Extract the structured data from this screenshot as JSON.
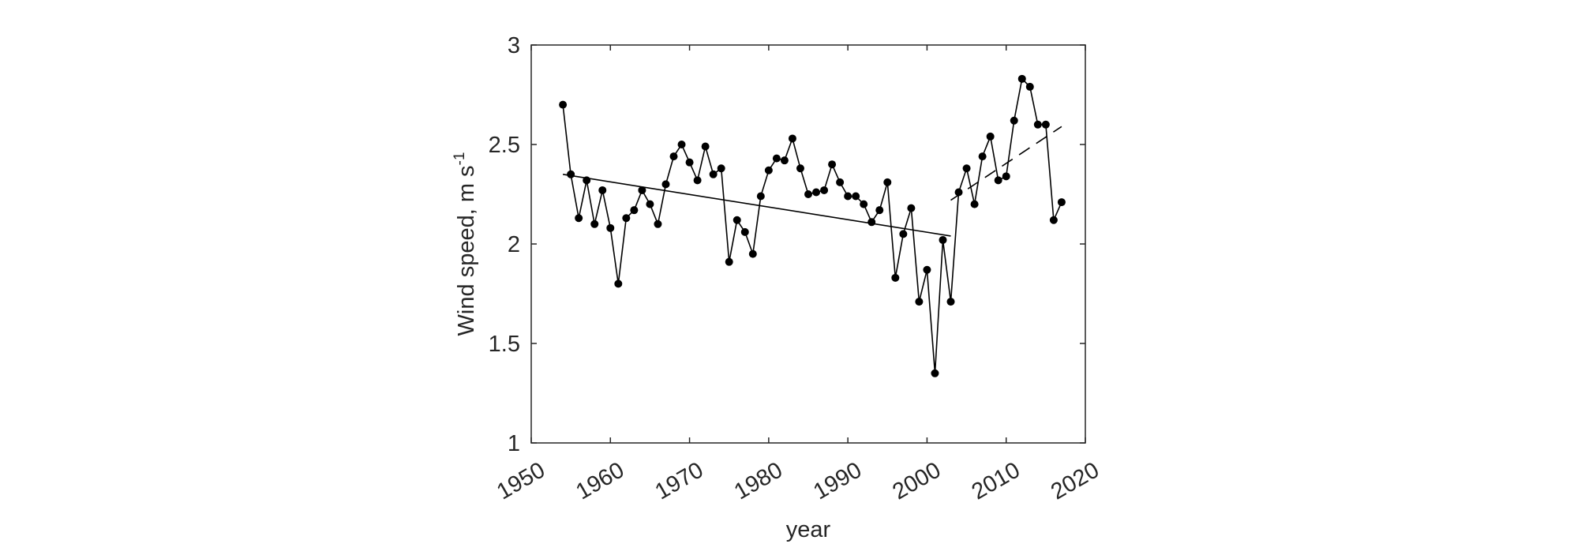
{
  "chart_data": {
    "type": "line",
    "xlabel": "year",
    "ylabel": "Wind speed, m s",
    "ylabel_superscript": "-1",
    "xlim": [
      1950,
      2020
    ],
    "ylim": [
      1,
      3
    ],
    "xticks": [
      1950,
      1960,
      1970,
      1980,
      1990,
      2000,
      2010,
      2020
    ],
    "yticks": [
      1,
      1.5,
      2,
      2.5,
      3
    ],
    "grid": false,
    "series": [
      {
        "style": "solid line with filled circle markers",
        "x": [
          1954,
          1955,
          1956,
          1957,
          1958,
          1959,
          1960,
          1961,
          1962,
          1963,
          1964,
          1965,
          1966,
          1967,
          1968,
          1969,
          1970,
          1971,
          1972,
          1973,
          1974,
          1975,
          1976,
          1977,
          1978,
          1979,
          1980,
          1981,
          1982,
          1983,
          1984,
          1985,
          1986,
          1987,
          1988,
          1989,
          1990,
          1991,
          1992,
          1993,
          1994,
          1995,
          1996,
          1997,
          1998,
          1999,
          2000,
          2001,
          2002,
          2003,
          2004,
          2005,
          2006,
          2007,
          2008,
          2009,
          2010,
          2011,
          2012,
          2013,
          2014,
          2015,
          2016,
          2017
        ],
        "y": [
          2.7,
          2.35,
          2.13,
          2.32,
          2.1,
          2.27,
          2.08,
          1.8,
          2.13,
          2.17,
          2.27,
          2.2,
          2.1,
          2.3,
          2.44,
          2.5,
          2.41,
          2.32,
          2.49,
          2.35,
          2.38,
          1.91,
          2.12,
          2.06,
          1.95,
          2.24,
          2.37,
          2.43,
          2.42,
          2.53,
          2.38,
          2.25,
          2.26,
          2.27,
          2.4,
          2.31,
          2.24,
          2.24,
          2.2,
          2.11,
          2.17,
          2.31,
          1.83,
          2.05,
          2.18,
          1.71,
          1.87,
          1.35,
          2.02,
          1.71,
          2.26,
          2.38,
          2.2,
          2.44,
          2.54,
          2.32,
          2.34,
          2.62,
          2.83,
          2.79,
          2.6,
          2.6,
          2.12,
          2.21
        ]
      },
      {
        "style": "solid trend line",
        "x": [
          1954,
          2003
        ],
        "y": [
          2.35,
          2.04
        ]
      },
      {
        "style": "dashed trend line",
        "x": [
          2003,
          2017
        ],
        "y": [
          2.22,
          2.59
        ]
      }
    ]
  }
}
